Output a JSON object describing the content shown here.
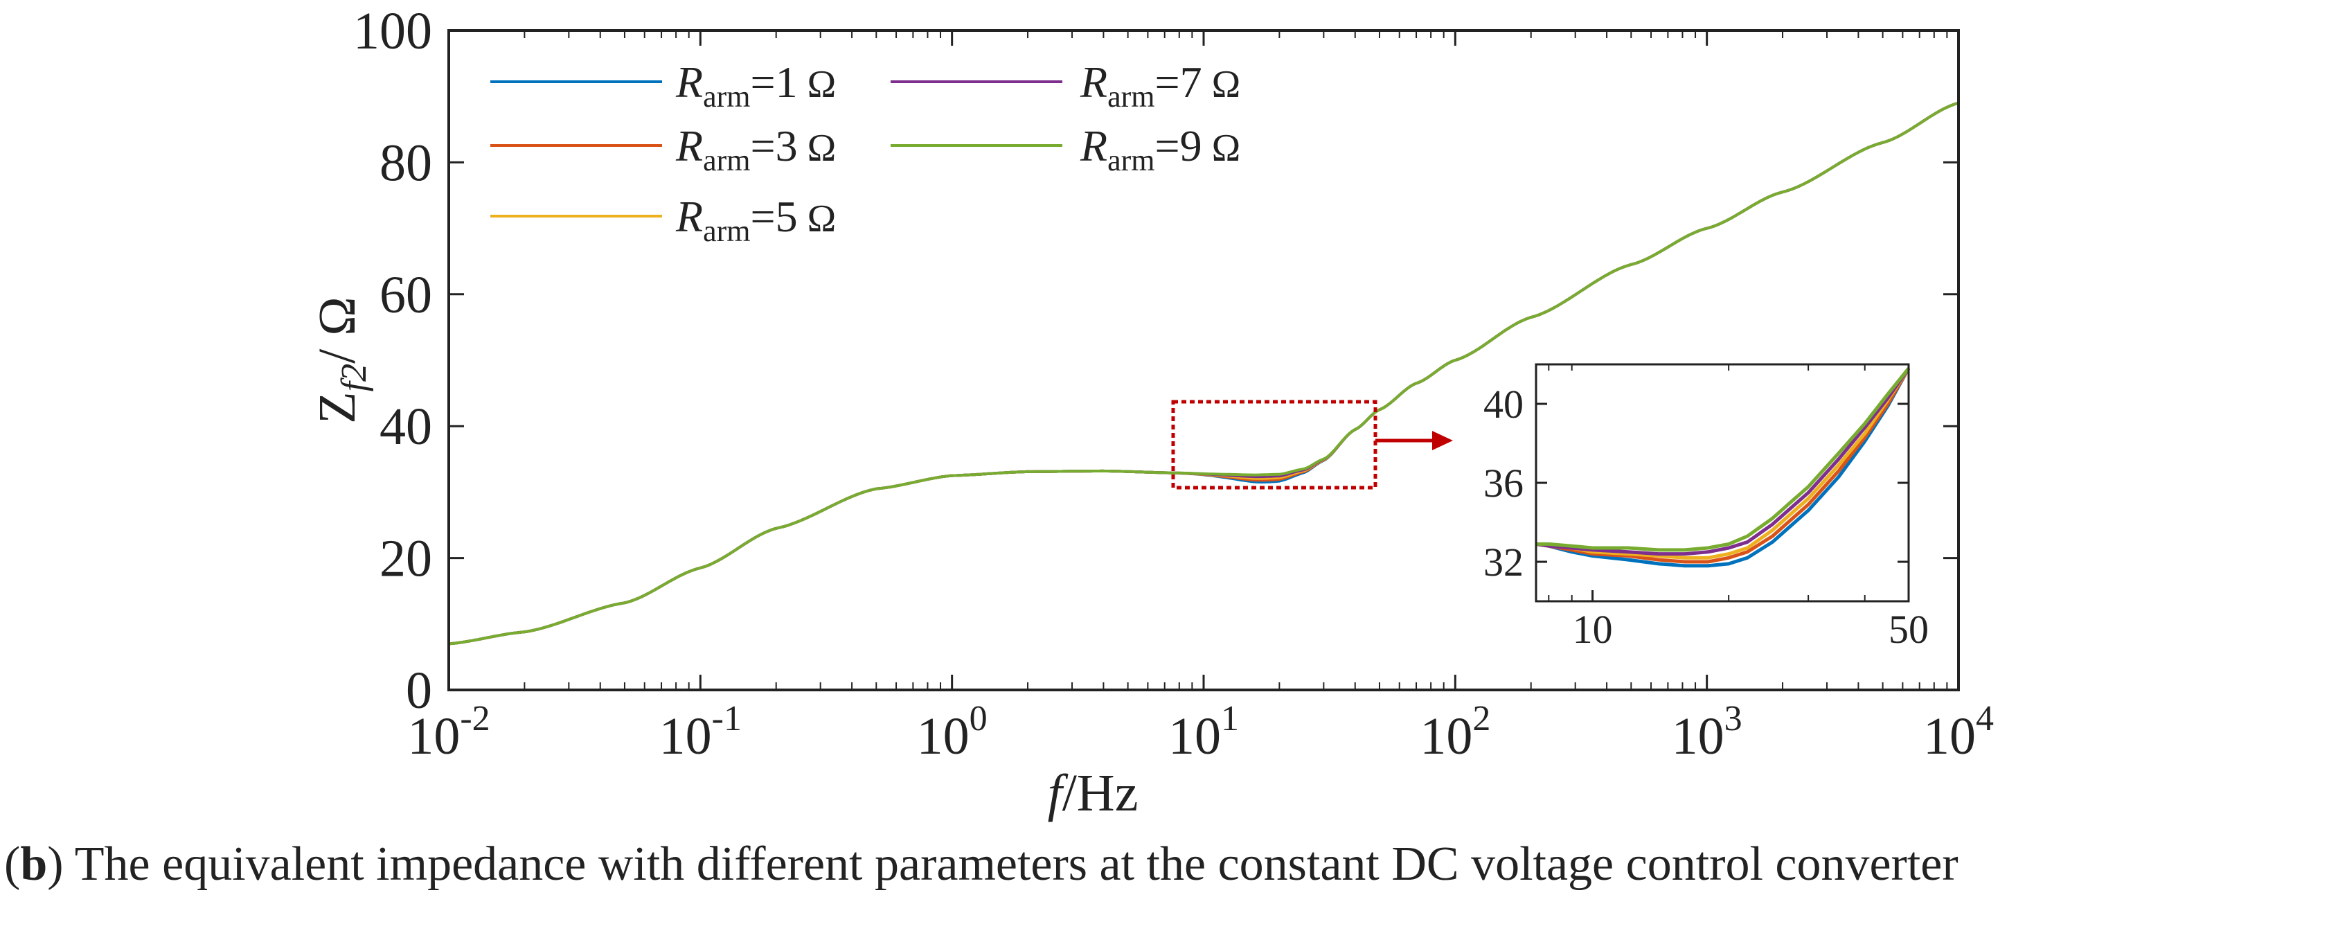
{
  "chart_data": {
    "type": "line",
    "title": "",
    "xscale": "log",
    "xlabel": {
      "italic": "f",
      "rest": "/Hz"
    },
    "ylabel": {
      "base": "Z",
      "sub": "f2",
      "rest": "/ Ω"
    },
    "xlim": [
      0.01,
      10000
    ],
    "ylim": [
      0,
      100
    ],
    "xticks": [
      {
        "value": 0.01,
        "base": "10",
        "exp": "-2"
      },
      {
        "value": 0.1,
        "base": "10",
        "exp": "-1"
      },
      {
        "value": 1,
        "base": "10",
        "exp": "0"
      },
      {
        "value": 10,
        "base": "10",
        "exp": "1"
      },
      {
        "value": 100,
        "base": "10",
        "exp": "2"
      },
      {
        "value": 1000,
        "base": "10",
        "exp": "3"
      },
      {
        "value": 10000,
        "base": "10",
        "exp": "4"
      }
    ],
    "yticks": [
      0,
      20,
      40,
      60,
      80,
      100
    ],
    "x": [
      0.01,
      0.02,
      0.05,
      0.1,
      0.2,
      0.5,
      1,
      2,
      4,
      8,
      12,
      16,
      20,
      25,
      30,
      40,
      50,
      70,
      100,
      200,
      500,
      1000,
      2000,
      5000,
      10000
    ],
    "series_base": [
      7.0,
      8.8,
      13.2,
      18.5,
      24.5,
      30.5,
      32.5,
      33.1,
      33.2,
      32.9,
      32.7,
      32.6,
      32.7,
      33.5,
      35.0,
      39.5,
      42.5,
      46.5,
      50.0,
      56.5,
      64.5,
      70.0,
      75.5,
      83.0,
      89.0
    ],
    "series": [
      {
        "name": "1",
        "color": "#0072bd"
      },
      {
        "name": "3",
        "color": "#d95319"
      },
      {
        "name": "5",
        "color": "#edb120"
      },
      {
        "name": "7",
        "color": "#7e2f8e"
      },
      {
        "name": "9",
        "color": "#77ac30"
      }
    ],
    "legend": {
      "prefix": "R",
      "sub": "arm",
      "eq": "=",
      "unit": "Ω",
      "placement": "top-left"
    },
    "inset": {
      "xlim": [
        7.5,
        50
      ],
      "ylim": [
        30,
        42
      ],
      "xticks": [
        "10",
        "50"
      ],
      "yticks": [
        "32",
        "36",
        "40"
      ],
      "x": [
        7.5,
        8,
        9,
        10,
        12,
        14,
        16,
        18,
        20,
        22,
        25,
        28,
        30,
        35,
        40,
        45,
        50
      ],
      "series": [
        {
          "name": "1",
          "values": [
            32.9,
            32.8,
            32.5,
            32.3,
            32.1,
            31.9,
            31.8,
            31.8,
            31.9,
            32.2,
            33.0,
            34.0,
            34.6,
            36.3,
            38.1,
            39.9,
            41.8
          ]
        },
        {
          "name": "3",
          "values": [
            32.9,
            32.8,
            32.6,
            32.4,
            32.3,
            32.1,
            32.0,
            32.0,
            32.2,
            32.5,
            33.3,
            34.3,
            34.9,
            36.6,
            38.3,
            40.0,
            41.8
          ]
        },
        {
          "name": "5",
          "values": [
            32.9,
            32.8,
            32.7,
            32.5,
            32.4,
            32.3,
            32.2,
            32.2,
            32.4,
            32.7,
            33.6,
            34.6,
            35.2,
            36.9,
            38.5,
            40.2,
            41.8
          ]
        },
        {
          "name": "7",
          "values": [
            32.9,
            32.8,
            32.7,
            32.6,
            32.5,
            32.4,
            32.4,
            32.5,
            32.7,
            33.0,
            33.9,
            34.9,
            35.5,
            37.2,
            38.8,
            40.3,
            41.8
          ]
        },
        {
          "name": "9",
          "values": [
            32.9,
            32.9,
            32.8,
            32.7,
            32.7,
            32.6,
            32.6,
            32.7,
            32.9,
            33.3,
            34.2,
            35.2,
            35.8,
            37.5,
            39.0,
            40.5,
            41.8
          ]
        }
      ]
    }
  },
  "caption": {
    "label": "b",
    "text": " The equivalent impedance with different parameters at the constant DC voltage control converter"
  }
}
